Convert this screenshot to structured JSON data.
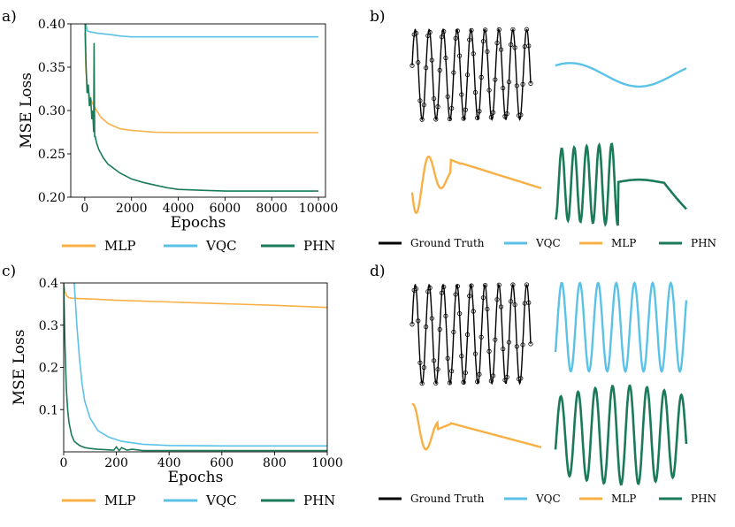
{
  "colors": {
    "MLP": "#f8b044",
    "VQC": "#5bc2e7",
    "PHN": "#1b7a58",
    "Ground Truth": "#000000"
  },
  "chart_data": [
    {
      "panel": "a)",
      "type": "line",
      "xlabel": "Epochs",
      "ylabel": "MSE Loss",
      "xlim": [
        -600,
        10300
      ],
      "ylim": [
        0.2,
        0.4
      ],
      "xticks": [
        0,
        2000,
        4000,
        6000,
        8000,
        10000
      ],
      "yticks": [
        0.2,
        0.25,
        0.3,
        0.35,
        0.4
      ],
      "xtick_labels": [
        "0",
        "2000",
        "4000",
        "6000",
        "8000",
        "10000"
      ],
      "ytick_labels": [
        "0.20",
        "0.25",
        "0.30",
        "0.35",
        "0.40"
      ],
      "legend": [
        "MLP",
        "VQC",
        "PHN"
      ],
      "legend_position": "below",
      "series": [
        {
          "name": "MLP",
          "x": [
            0,
            50,
            100,
            200,
            300,
            500,
            700,
            1000,
            1500,
            2000,
            3000,
            4000,
            6000,
            10000
          ],
          "values": [
            0.39,
            0.345,
            0.33,
            0.318,
            0.31,
            0.3,
            0.292,
            0.285,
            0.279,
            0.277,
            0.275,
            0.2745,
            0.2745,
            0.2745
          ]
        },
        {
          "name": "VQC",
          "x": [
            0,
            50,
            100,
            200,
            400,
            600,
            1000,
            1500,
            2000,
            3000,
            5000,
            10000
          ],
          "values": [
            0.42,
            0.4,
            0.392,
            0.391,
            0.39,
            0.389,
            0.388,
            0.386,
            0.385,
            0.385,
            0.385,
            0.385
          ]
        },
        {
          "name": "PHN",
          "x": [
            0,
            50,
            100,
            150,
            200,
            250,
            300,
            340,
            380,
            400,
            420,
            450,
            500,
            600,
            800,
            1000,
            1500,
            2000,
            2500,
            3000,
            3500,
            4000,
            5000,
            6000,
            8000,
            10000
          ],
          "values": [
            0.42,
            0.355,
            0.32,
            0.33,
            0.305,
            0.315,
            0.29,
            0.3,
            0.275,
            0.378,
            0.27,
            0.27,
            0.263,
            0.255,
            0.245,
            0.238,
            0.228,
            0.221,
            0.217,
            0.214,
            0.211,
            0.209,
            0.208,
            0.207,
            0.207,
            0.207
          ]
        }
      ]
    },
    {
      "panel": "c)",
      "type": "line",
      "xlabel": "Epochs",
      "ylabel": "MSE Loss",
      "xlim": [
        0,
        1000
      ],
      "ylim": [
        0,
        0.4
      ],
      "xticks": [
        0,
        200,
        400,
        600,
        800,
        1000
      ],
      "yticks": [
        0.1,
        0.2,
        0.3,
        0.4
      ],
      "xtick_labels": [
        "0",
        "200",
        "400",
        "600",
        "800",
        "1000"
      ],
      "ytick_labels": [
        "0.1",
        "0.2",
        "0.3",
        "0.4"
      ],
      "legend": [
        "MLP",
        "VQC",
        "PHN"
      ],
      "legend_position": "below",
      "series": [
        {
          "name": "MLP",
          "x": [
            0,
            5,
            10,
            20,
            30,
            60,
            100,
            200,
            400,
            600,
            800,
            1000
          ],
          "values": [
            0.4,
            0.38,
            0.37,
            0.365,
            0.364,
            0.363,
            0.362,
            0.359,
            0.355,
            0.351,
            0.347,
            0.342
          ]
        },
        {
          "name": "VQC",
          "x": [
            40,
            50,
            60,
            70,
            80,
            100,
            130,
            170,
            220,
            300,
            400,
            600,
            1000
          ],
          "values": [
            0.4,
            0.3,
            0.22,
            0.16,
            0.12,
            0.08,
            0.05,
            0.035,
            0.025,
            0.018,
            0.015,
            0.014,
            0.014
          ]
        },
        {
          "name": "PHN",
          "x": [
            0,
            5,
            10,
            15,
            20,
            30,
            40,
            60,
            80,
            100,
            130,
            160,
            190,
            200,
            210,
            220,
            240,
            260,
            300,
            400,
            600,
            1000
          ],
          "values": [
            0.4,
            0.25,
            0.15,
            0.1,
            0.07,
            0.04,
            0.025,
            0.015,
            0.01,
            0.008,
            0.006,
            0.005,
            0.004,
            0.012,
            0.003,
            0.01,
            0.004,
            0.006,
            0.003,
            0.003,
            0.003,
            0.003
          ]
        }
      ]
    },
    {
      "panel": "b)",
      "type": "line",
      "legend": [
        "Ground Truth",
        "VQC",
        "MLP",
        "PHN"
      ],
      "legend_position": "below",
      "note": "2x2 grid of fitted waveforms; unitless amplitude in [-1, 1] over t in [0, 1]",
      "series": [
        {
          "name": "Ground Truth",
          "function": "sin(2*pi*8.5*t)",
          "markers": "circle"
        },
        {
          "name": "VQC",
          "function": "0.55*cos(2*pi*(t-0.3))*0.9"
        },
        {
          "name": "MLP",
          "function": "damped oscillation then linear decay"
        },
        {
          "name": "PHN",
          "function": "5 oscillations then flat decay"
        }
      ]
    },
    {
      "panel": "d)",
      "type": "line",
      "legend": [
        "Ground Truth",
        "VQC",
        "MLP",
        "PHN"
      ],
      "legend_position": "below",
      "note": "2x2 grid of fitted waveforms; unitless amplitude in [-1, 1] over t in [0, 1]",
      "series": [
        {
          "name": "Ground Truth",
          "function": "sin(2*pi*8.5*t)",
          "markers": "circle"
        },
        {
          "name": "VQC",
          "function": "sin(2*pi*7*t)"
        },
        {
          "name": "MLP",
          "function": "two spikes then decay"
        },
        {
          "name": "PHN",
          "function": "sin(2*pi*7.5*t) with growing amplitude"
        }
      ]
    }
  ]
}
